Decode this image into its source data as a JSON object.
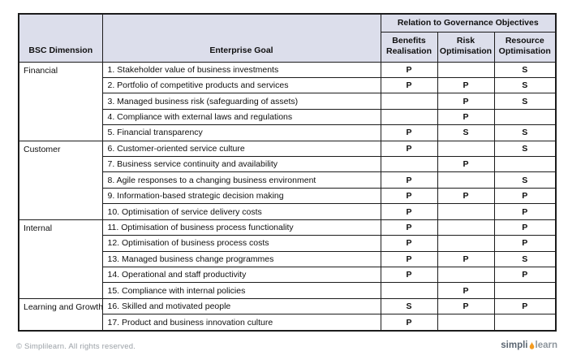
{
  "colors": {
    "header_bg": "#dcdeeb",
    "border": "#1c1c1c",
    "flame": "#f49b1f",
    "muted_text": "#9aa0a6",
    "logo_simpli": "#5b6672",
    "logo_learn": "#8e969d"
  },
  "table": {
    "header": {
      "bsc_dimension": "BSC Dimension",
      "enterprise_goal": "Enterprise Goal",
      "governance_group": "Relation to Governance Objectives",
      "columns": [
        "Benefits Realisation",
        "Risk Optimisation",
        "Resource Optimisation"
      ]
    },
    "groups": [
      {
        "dimension": "Financial",
        "rows": [
          {
            "goal": "1. Stakeholder value of business investments",
            "benefits": "P",
            "risk": "",
            "resource": "S"
          },
          {
            "goal": "2. Portfolio of competitive products and services",
            "benefits": "P",
            "risk": "P",
            "resource": "S"
          },
          {
            "goal": "3. Managed business risk (safeguarding of assets)",
            "benefits": "",
            "risk": "P",
            "resource": "S"
          },
          {
            "goal": "4. Compliance with external laws and regulations",
            "benefits": "",
            "risk": "P",
            "resource": ""
          },
          {
            "goal": "5. Financial transparency",
            "benefits": "P",
            "risk": "S",
            "resource": "S"
          }
        ]
      },
      {
        "dimension": "Customer",
        "rows": [
          {
            "goal": "6. Customer-oriented service culture",
            "benefits": "P",
            "risk": "",
            "resource": "S"
          },
          {
            "goal": "7. Business service continuity and availability",
            "benefits": "",
            "risk": "P",
            "resource": ""
          },
          {
            "goal": "8. Agile responses to a changing business environment",
            "benefits": "P",
            "risk": "",
            "resource": "S"
          },
          {
            "goal": "9. Information-based strategic decision making",
            "benefits": "P",
            "risk": "P",
            "resource": "P"
          },
          {
            "goal": "10. Optimisation of service delivery costs",
            "benefits": "P",
            "risk": "",
            "resource": "P"
          }
        ]
      },
      {
        "dimension": "Internal",
        "rows": [
          {
            "goal": "11. Optimisation of business process functionality",
            "benefits": "P",
            "risk": "",
            "resource": "P"
          },
          {
            "goal": "12. Optimisation of business process costs",
            "benefits": "P",
            "risk": "",
            "resource": "P"
          },
          {
            "goal": "13. Managed business change programmes",
            "benefits": "P",
            "risk": "P",
            "resource": "S"
          },
          {
            "goal": "14. Operational and staff productivity",
            "benefits": "P",
            "risk": "",
            "resource": "P"
          },
          {
            "goal": "15. Compliance with internal policies",
            "benefits": "",
            "risk": "P",
            "resource": ""
          }
        ]
      },
      {
        "dimension": "Learning and Growth",
        "rows": [
          {
            "goal": "16. Skilled and motivated people",
            "benefits": "S",
            "risk": "P",
            "resource": "P"
          },
          {
            "goal": "17. Product and business innovation culture",
            "benefits": "P",
            "risk": "",
            "resource": ""
          }
        ]
      }
    ]
  },
  "footer": {
    "copyright": "© Simplilearn. All rights reserved.",
    "logo": {
      "part1": "simpli",
      "part2": "learn"
    }
  }
}
